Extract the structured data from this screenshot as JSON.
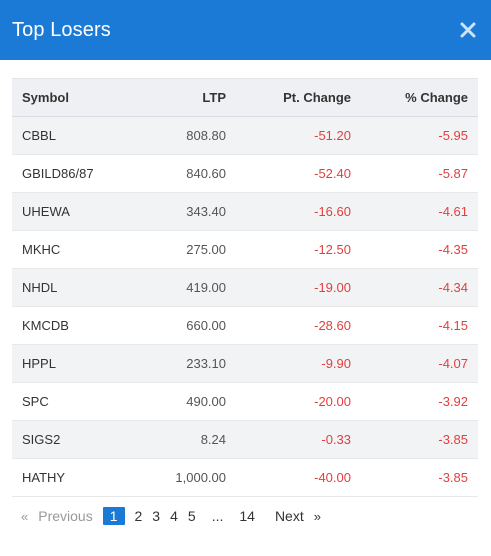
{
  "modal": {
    "title": "Top Losers",
    "close_icon": "close-icon"
  },
  "table": {
    "headers": [
      "Symbol",
      "LTP",
      "Pt. Change",
      "% Change"
    ],
    "rows": [
      [
        "CBBL",
        "808.80",
        "-51.20",
        "-5.95"
      ],
      [
        "GBILD86/87",
        "840.60",
        "-52.40",
        "-5.87"
      ],
      [
        "UHEWA",
        "343.40",
        "-16.60",
        "-4.61"
      ],
      [
        "MKHC",
        "275.00",
        "-12.50",
        "-4.35"
      ],
      [
        "NHDL",
        "419.00",
        "-19.00",
        "-4.34"
      ],
      [
        "KMCDB",
        "660.00",
        "-28.60",
        "-4.15"
      ],
      [
        "HPPL",
        "233.10",
        "-9.90",
        "-4.07"
      ],
      [
        "SPC",
        "490.00",
        "-20.00",
        "-3.92"
      ],
      [
        "SIGS2",
        "8.24",
        "-0.33",
        "-3.85"
      ],
      [
        "HATHY",
        "1,000.00",
        "-40.00",
        "-3.85"
      ]
    ]
  },
  "pagination": {
    "prev_arrow": "«",
    "previous": "Previous",
    "pages": [
      "1",
      "2",
      "3",
      "4",
      "5"
    ],
    "ellipsis": "...",
    "last": "14",
    "next": "Next",
    "next_arrow": "»",
    "current": "1"
  },
  "colors": {
    "header_bg": "#1a7ad6",
    "negative": "#e2403f"
  }
}
